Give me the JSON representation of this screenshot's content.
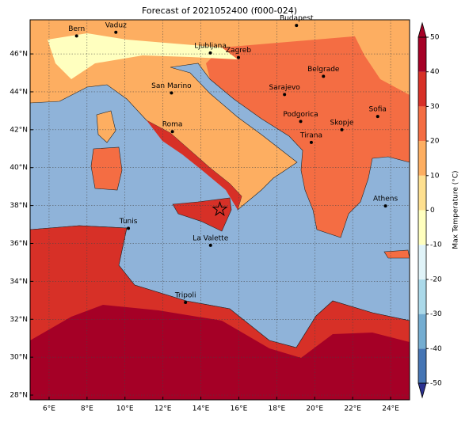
{
  "chart_data": {
    "type": "map",
    "title": "Forecast of 2021052400 (f000-024)",
    "xlim": [
      5,
      25
    ],
    "ylim": [
      27.75,
      47.8
    ],
    "xticks": [
      {
        "value": 6,
        "label": "6°E"
      },
      {
        "value": 8,
        "label": "8°E"
      },
      {
        "value": 10,
        "label": "10°E"
      },
      {
        "value": 12,
        "label": "12°E"
      },
      {
        "value": 14,
        "label": "14°E"
      },
      {
        "value": 16,
        "label": "16°E"
      },
      {
        "value": 18,
        "label": "18°E"
      },
      {
        "value": 20,
        "label": "20°E"
      },
      {
        "value": 22,
        "label": "22°E"
      },
      {
        "value": 24,
        "label": "24°E"
      }
    ],
    "yticks": [
      {
        "value": 28,
        "label": "28°N"
      },
      {
        "value": 30,
        "label": "30°N"
      },
      {
        "value": 32,
        "label": "32°N"
      },
      {
        "value": 34,
        "label": "34°N"
      },
      {
        "value": 36,
        "label": "36°N"
      },
      {
        "value": 38,
        "label": "38°N"
      },
      {
        "value": 40,
        "label": "40°N"
      },
      {
        "value": 42,
        "label": "42°N"
      },
      {
        "value": 44,
        "label": "44°N"
      },
      {
        "value": 46,
        "label": "46°N"
      }
    ],
    "grid": true,
    "cities": [
      {
        "name": "Bern",
        "lon": 7.45,
        "lat": 46.95
      },
      {
        "name": "Vaduz",
        "lon": 9.52,
        "lat": 47.14
      },
      {
        "name": "Budapest",
        "lon": 19.04,
        "lat": 47.5
      },
      {
        "name": "Ljubljana",
        "lon": 14.5,
        "lat": 46.05
      },
      {
        "name": "Zagreb",
        "lon": 15.98,
        "lat": 45.81
      },
      {
        "name": "Belgrade",
        "lon": 20.46,
        "lat": 44.82
      },
      {
        "name": "San Marino",
        "lon": 12.45,
        "lat": 43.94
      },
      {
        "name": "Sarajevo",
        "lon": 18.41,
        "lat": 43.86
      },
      {
        "name": "Sofia",
        "lon": 23.32,
        "lat": 42.7
      },
      {
        "name": "Podgorica",
        "lon": 19.26,
        "lat": 42.44
      },
      {
        "name": "Skopje",
        "lon": 21.43,
        "lat": 42.0
      },
      {
        "name": "Roma",
        "lon": 12.5,
        "lat": 41.9
      },
      {
        "name": "Tirana",
        "lon": 19.82,
        "lat": 41.33
      },
      {
        "name": "Athens",
        "lon": 23.73,
        "lat": 37.98
      },
      {
        "name": "Tunis",
        "lon": 10.18,
        "lat": 36.8
      },
      {
        "name": "La Valette",
        "lon": 14.51,
        "lat": 35.9
      },
      {
        "name": "Tripoli",
        "lon": 13.19,
        "lat": 32.89
      }
    ],
    "marker": {
      "lon": 15.0,
      "lat": 37.8
    },
    "colorbar": {
      "label": "Max Temperature (°C)",
      "levels": [
        -50,
        -40,
        -30,
        -20,
        -10,
        0,
        10,
        20,
        30,
        40,
        50
      ],
      "ticks": [
        -50,
        -40,
        -30,
        -20,
        -10,
        0,
        10,
        20,
        30,
        40,
        50
      ],
      "colors": [
        "#2b3190",
        "#4575b4",
        "#74add1",
        "#abd9e9",
        "#e0f3f8",
        "#ffffbf",
        "#fee090",
        "#fdae61",
        "#f46d43",
        "#d73027",
        "#a50026"
      ]
    }
  }
}
